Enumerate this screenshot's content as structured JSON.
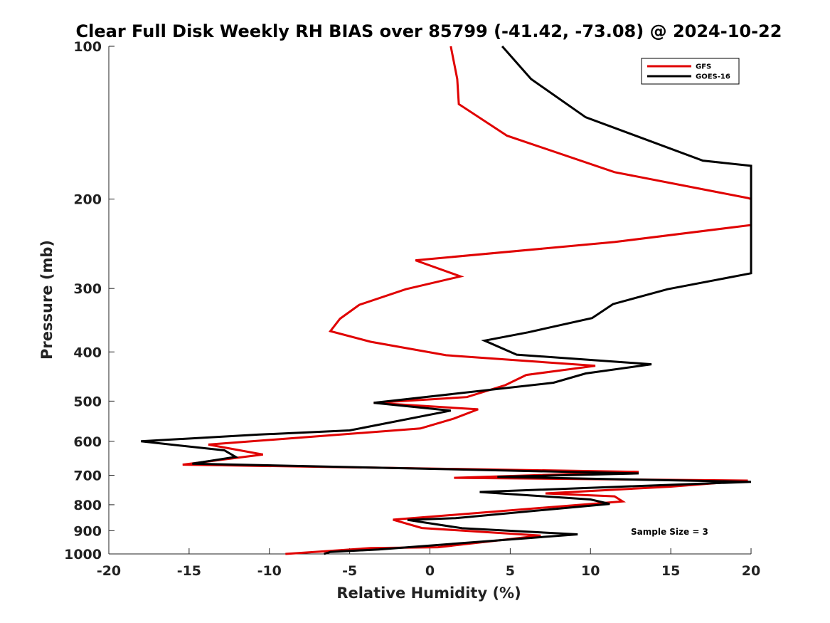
{
  "chart_data": {
    "type": "line",
    "title": "Clear Full Disk Weekly RH BIAS over 85799 (-41.42, -73.08) @ 2024-10-22",
    "xlabel": "Relative Humidity (%)",
    "ylabel": "Pressure (mb)",
    "xlim": [
      -20,
      20
    ],
    "ylim": [
      100,
      1000
    ],
    "y_scale": "log",
    "y_reversed": true,
    "x_ticks": [
      -20,
      -15,
      -10,
      -5,
      0,
      5,
      10,
      15,
      20
    ],
    "x_tick_labels": [
      "-20",
      "-15",
      "-10",
      "-5",
      "0",
      "5",
      "10",
      "15",
      "20"
    ],
    "y_ticks": [
      100,
      200,
      300,
      400,
      500,
      600,
      700,
      800,
      900,
      1000
    ],
    "y_tick_labels": [
      "100",
      "200",
      "300",
      "400",
      "500",
      "600",
      "700",
      "800",
      "900",
      "1000"
    ],
    "grid": false,
    "legend_position": "top-right",
    "annotation": "Sample Size = 3",
    "series": [
      {
        "name": "GFS",
        "color": "#e00000",
        "points": [
          [
            1.3,
            100
          ],
          [
            1.7,
            116
          ],
          [
            1.8,
            130
          ],
          [
            4.8,
            150
          ],
          [
            11.5,
            177
          ],
          [
            19.8,
            199
          ],
          [
            20,
            200
          ],
          [
            20,
            225
          ],
          [
            11.5,
            243
          ],
          [
            -0.9,
            264
          ],
          [
            1.9,
            284
          ],
          [
            -1.5,
            301
          ],
          [
            -4.4,
            323
          ],
          [
            -5.6,
            344
          ],
          [
            -6.2,
            364
          ],
          [
            -3.7,
            382
          ],
          [
            1.0,
            406
          ],
          [
            10.3,
            426
          ],
          [
            6.0,
            444
          ],
          [
            4.7,
            465
          ],
          [
            2.3,
            491
          ],
          [
            -3.5,
            504
          ],
          [
            3.0,
            519
          ],
          [
            1.5,
            541
          ],
          [
            -0.6,
            566
          ],
          [
            -13.8,
            609
          ],
          [
            -10.4,
            637
          ],
          [
            -15.4,
            667
          ],
          [
            13.0,
            689
          ],
          [
            1.5,
            708
          ],
          [
            19.8,
            717
          ],
          [
            15.0,
            737
          ],
          [
            7.2,
            760
          ],
          [
            11.5,
            770
          ],
          [
            12.0,
            788
          ],
          [
            -2.3,
            856
          ],
          [
            -0.5,
            889
          ],
          [
            6.9,
            920
          ],
          [
            0.5,
            970
          ],
          [
            -3.7,
            974
          ],
          [
            -7.2,
            991
          ],
          [
            -9.0,
            1000
          ]
        ]
      },
      {
        "name": "GOES-16",
        "color": "#000000",
        "points": [
          [
            4.5,
            100
          ],
          [
            6.3,
            116
          ],
          [
            9.7,
            138
          ],
          [
            17.0,
            168
          ],
          [
            20,
            172
          ],
          [
            20,
            264
          ],
          [
            20,
            280
          ],
          [
            14.8,
            301
          ],
          [
            11.4,
            322
          ],
          [
            10.1,
            343
          ],
          [
            6.1,
            366
          ],
          [
            3.4,
            380
          ],
          [
            5.4,
            405
          ],
          [
            13.8,
            423
          ],
          [
            9.7,
            441
          ],
          [
            7.7,
            460
          ],
          [
            -3.5,
            504
          ],
          [
            1.3,
            522
          ],
          [
            -5.0,
            571
          ],
          [
            -10.7,
            582
          ],
          [
            -18.0,
            600
          ],
          [
            -12.8,
            625
          ],
          [
            -12.1,
            644
          ],
          [
            -14.8,
            664
          ],
          [
            13.0,
            694
          ],
          [
            4.2,
            705
          ],
          [
            20,
            721
          ],
          [
            3.1,
            755
          ],
          [
            10.0,
            781
          ],
          [
            11.2,
            797
          ],
          [
            1.6,
            850
          ],
          [
            -1.4,
            857
          ],
          [
            2.0,
            890
          ],
          [
            9.2,
            915
          ],
          [
            -3.2,
            980
          ],
          [
            -6.2,
            991
          ],
          [
            -6.6,
            1000
          ]
        ]
      }
    ]
  }
}
